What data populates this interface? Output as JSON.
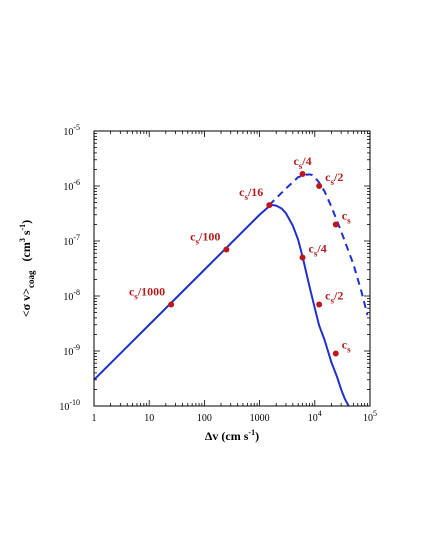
{
  "chart_data": {
    "type": "line",
    "xlabel": "Δv (cm s-1)",
    "ylabel": "<σ v>coag (cm3 s-1)",
    "xscale": "log",
    "yscale": "log",
    "xlim": [
      1,
      100000
    ],
    "ylim": [
      1e-10,
      1e-05
    ],
    "grid": false,
    "x_ticks": [
      {
        "value": 1,
        "base": "1",
        "exp": ""
      },
      {
        "value": 10,
        "base": "10",
        "exp": ""
      },
      {
        "value": 100,
        "base": "100",
        "exp": ""
      },
      {
        "value": 1000,
        "base": "1000",
        "exp": ""
      },
      {
        "value": 10000,
        "base": "10",
        "exp": "4"
      },
      {
        "value": 100000,
        "base": "10",
        "exp": "5"
      }
    ],
    "y_ticks": [
      {
        "value": 1e-10,
        "base": "10",
        "exp": "-10"
      },
      {
        "value": 1e-09,
        "base": "10",
        "exp": "-9"
      },
      {
        "value": 1e-08,
        "base": "10",
        "exp": "-8"
      },
      {
        "value": 1e-07,
        "base": "10",
        "exp": "-7"
      },
      {
        "value": 1e-06,
        "base": "10",
        "exp": "-6"
      },
      {
        "value": 1e-05,
        "base": "10",
        "exp": "-5"
      }
    ],
    "series": [
      {
        "style": "solid",
        "color": "#1f2fd0",
        "x": [
          1,
          10,
          100,
          1000,
          1500,
          1700,
          2000,
          2500,
          3000,
          4000,
          5000,
          6000,
          8000,
          10000,
          12000,
          15000,
          20000,
          25000,
          30000,
          35000,
          40000,
          50000
        ],
        "y": [
          3e-10,
          3e-09,
          3e-08,
          3e-07,
          4.3e-07,
          4.5e-07,
          4.4e-07,
          3.9e-07,
          3.2e-07,
          1.9e-07,
          1.05e-07,
          5.2e-08,
          1.5e-08,
          6e-09,
          2.9e-09,
          1.6e-09,
          6.2e-10,
          3.5e-10,
          2e-10,
          1.35e-10,
          1.05e-10,
          7e-11
        ]
      },
      {
        "style": "dashed",
        "color": "#1f2fd0",
        "x": [
          1500,
          3000,
          5000,
          7000,
          8000,
          9000,
          10000,
          12000,
          15000,
          20000,
          30000,
          50000,
          70000,
          90000
        ],
        "y": [
          4.5e-07,
          9e-07,
          1.45e-06,
          1.6e-06,
          1.63e-06,
          1.58e-06,
          1.45e-06,
          1.15e-06,
          8e-07,
          4.2e-07,
          1.5e-07,
          3.8e-08,
          1.2e-08,
          4.5e-09
        ]
      }
    ],
    "points": [
      {
        "x": 25,
        "y": 7e-09,
        "label_base": "c",
        "label_sub": "s",
        "label_rest": "/1000",
        "label_pos": "above-left"
      },
      {
        "x": 250,
        "y": 7e-08,
        "label_base": "c",
        "label_sub": "s",
        "label_rest": "/100",
        "label_pos": "above-left"
      },
      {
        "x": 1500,
        "y": 4.5e-07,
        "label_base": "c",
        "label_sub": "s",
        "label_rest": "/16",
        "label_pos": "above-left"
      },
      {
        "x": 6000,
        "y": 1.65e-06,
        "label_base": "c",
        "label_sub": "s",
        "label_rest": "/4",
        "label_pos": "above"
      },
      {
        "x": 12000,
        "y": 1e-06,
        "label_base": "c",
        "label_sub": "s",
        "label_rest": "/2",
        "label_pos": "right"
      },
      {
        "x": 24000,
        "y": 2e-07,
        "label_base": "c",
        "label_sub": "s",
        "label_rest": "",
        "label_pos": "right"
      },
      {
        "x": 6000,
        "y": 5e-08,
        "label_base": "c",
        "label_sub": "s",
        "label_rest": "/4",
        "label_pos": "right"
      },
      {
        "x": 12000,
        "y": 7e-09,
        "label_base": "c",
        "label_sub": "s",
        "label_rest": "/2",
        "label_pos": "right"
      },
      {
        "x": 24000,
        "y": 9e-10,
        "label_base": "c",
        "label_sub": "s",
        "label_rest": "",
        "label_pos": "right"
      }
    ],
    "point_color": "#c0161b",
    "annotation_color": "#b31b1b"
  }
}
